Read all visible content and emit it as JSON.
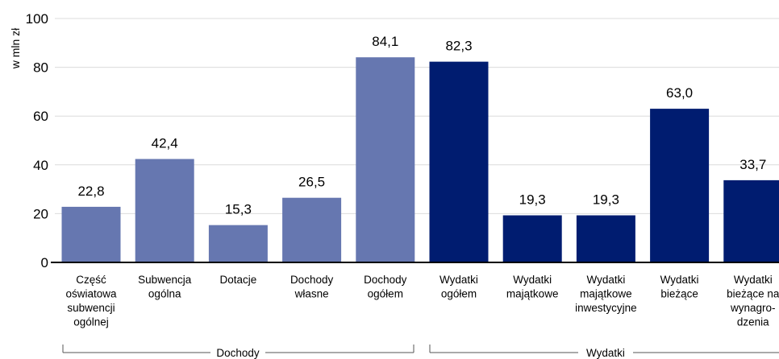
{
  "chart_data": {
    "type": "bar",
    "ylabel": "w mln zł",
    "ylim": [
      0,
      100
    ],
    "yticks": [
      0,
      20,
      40,
      60,
      80,
      100
    ],
    "grid": true,
    "categories": [
      {
        "lines": [
          "Część",
          "oświatowa",
          "subwencji",
          "ogólnej"
        ],
        "value": 22.8,
        "value_label": "22,8",
        "group": 0
      },
      {
        "lines": [
          "Subwencja",
          "ogólna"
        ],
        "value": 42.4,
        "value_label": "42,4",
        "group": 0
      },
      {
        "lines": [
          "Dotacje"
        ],
        "value": 15.3,
        "value_label": "15,3",
        "group": 0
      },
      {
        "lines": [
          "Dochody",
          "własne"
        ],
        "value": 26.5,
        "value_label": "26,5",
        "group": 0
      },
      {
        "lines": [
          "Dochody",
          "ogółem"
        ],
        "value": 84.1,
        "value_label": "84,1",
        "group": 0
      },
      {
        "lines": [
          "Wydatki",
          "ogółem"
        ],
        "value": 82.3,
        "value_label": "82,3",
        "group": 1
      },
      {
        "lines": [
          "Wydatki",
          "majątkowe"
        ],
        "value": 19.3,
        "value_label": "19,3",
        "group": 1
      },
      {
        "lines": [
          "Wydatki",
          "majątkowe",
          "inwestycyjne"
        ],
        "value": 19.3,
        "value_label": "19,3",
        "group": 1
      },
      {
        "lines": [
          "Wydatki",
          "bieżące"
        ],
        "value": 63.0,
        "value_label": "63,0",
        "group": 1
      },
      {
        "lines": [
          "Wydatki",
          "bieżące na",
          "wynagro-",
          "dzenia"
        ],
        "value": 33.7,
        "value_label": "33,7",
        "group": 1
      }
    ],
    "groups": [
      {
        "label": "Dochody",
        "color": "#6677b0"
      },
      {
        "label": "Wydatki",
        "color": "#001c70"
      }
    ]
  }
}
